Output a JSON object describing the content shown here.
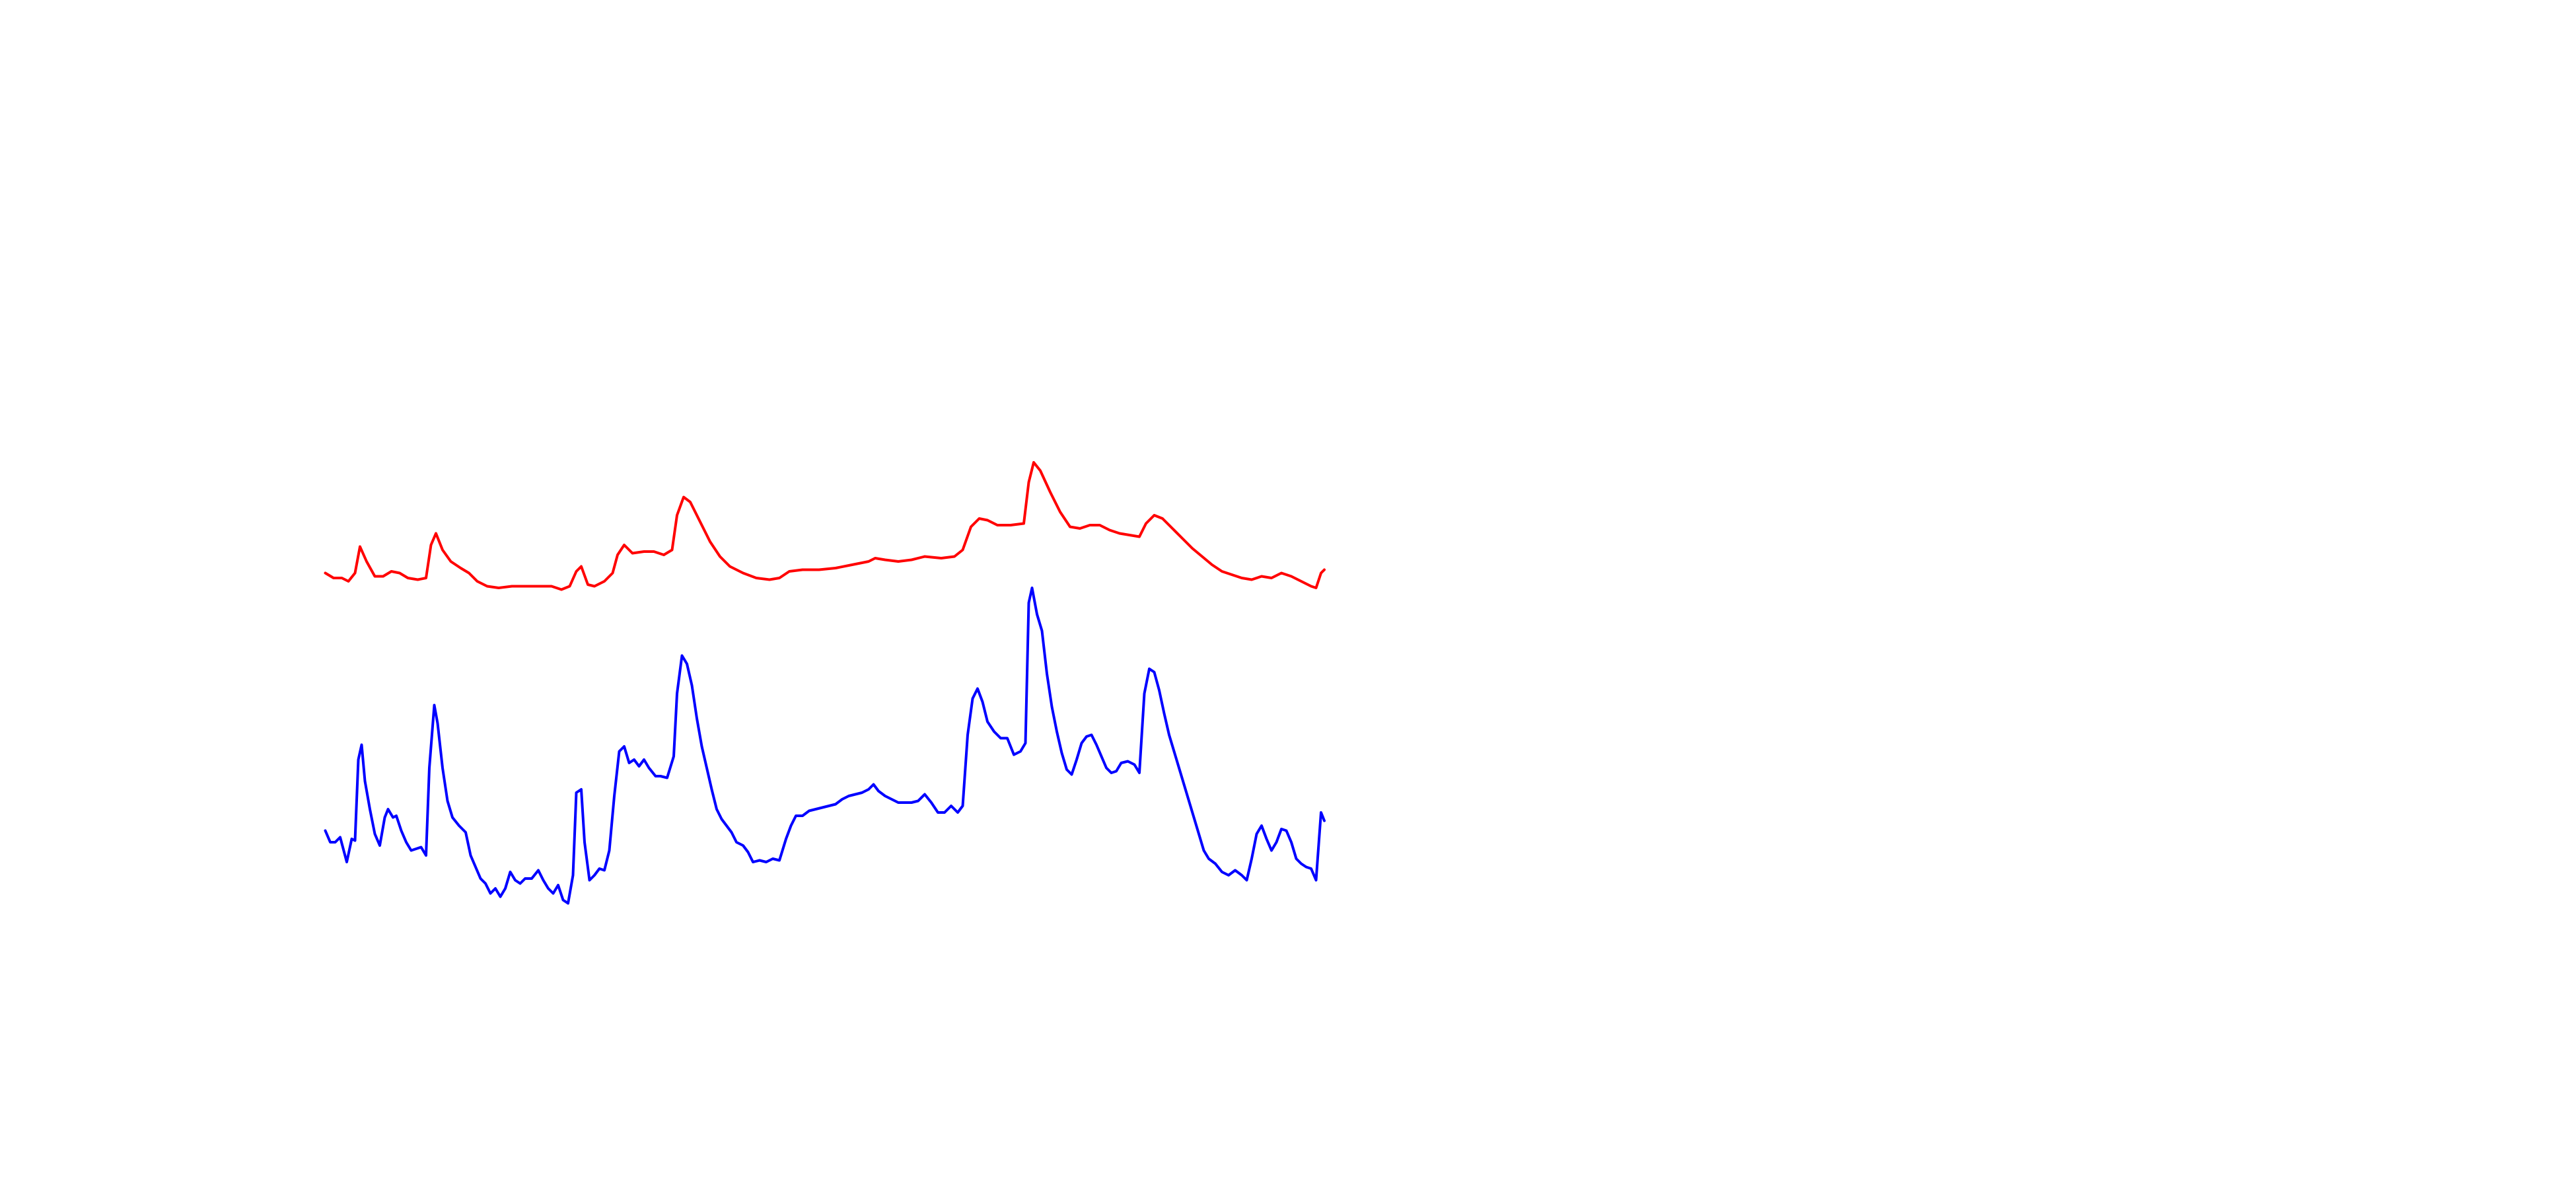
{
  "chart_data": {
    "type": "line",
    "xlim": [
      197,
      802
    ],
    "ylim": [
      720,
      0
    ],
    "series": [
      {
        "color": "#ff0000",
        "x": [
          197,
          202,
          207,
          211,
          215,
          218,
          222,
          227,
          232,
          237,
          242,
          247,
          253,
          258,
          261,
          264,
          268,
          273,
          279,
          284,
          289,
          295,
          302,
          310,
          318,
          326,
          334,
          340,
          345,
          349,
          352,
          356,
          360,
          366,
          371,
          374,
          378,
          383,
          390,
          396,
          402,
          407,
          410,
          414,
          418,
          424,
          430,
          436,
          442,
          450,
          458,
          466,
          472,
          478,
          486,
          496,
          506,
          516,
          526,
          530,
          536,
          544,
          552,
          560,
          570,
          578,
          583,
          588,
          593,
          598,
          604,
          612,
          620,
          623,
          626,
          630,
          636,
          642,
          648,
          654,
          660,
          666,
          672,
          678,
          684,
          690,
          694,
          699,
          704,
          710,
          716,
          722,
          728,
          734,
          740,
          746,
          752,
          758,
          764,
          770,
          776,
          782,
          788,
          794,
          797,
          800,
          802
        ],
        "values": [
          347,
          350,
          350,
          352,
          347,
          331,
          340,
          349,
          349,
          346,
          347,
          350,
          351,
          350,
          330,
          323,
          333,
          340,
          344,
          347,
          352,
          355,
          356,
          355,
          355,
          355,
          355,
          357,
          355,
          346,
          343,
          354,
          355,
          352,
          347,
          336,
          330,
          335,
          334,
          334,
          336,
          333,
          312,
          301,
          304,
          316,
          328,
          337,
          343,
          347,
          350,
          351,
          350,
          346,
          345,
          345,
          344,
          342,
          340,
          338,
          339,
          340,
          339,
          337,
          338,
          337,
          333,
          319,
          314,
          315,
          318,
          318,
          317,
          292,
          280,
          285,
          298,
          310,
          319,
          320,
          318,
          318,
          321,
          323,
          324,
          325,
          317,
          312,
          314,
          320,
          326,
          332,
          337,
          342,
          346,
          348,
          350,
          351,
          349,
          350,
          347,
          349,
          352,
          355,
          356,
          347,
          345
        ]
      },
      {
        "color": "#0000ff",
        "x": [
          197,
          200,
          203,
          206,
          210,
          213,
          215,
          217,
          219,
          221,
          224,
          227,
          230,
          233,
          235,
          238,
          240,
          243,
          246,
          249,
          252,
          255,
          258,
          260,
          263,
          265,
          268,
          271,
          274,
          278,
          282,
          285,
          288,
          291,
          294,
          297,
          300,
          303,
          306,
          309,
          312,
          315,
          318,
          322,
          326,
          329,
          332,
          335,
          338,
          341,
          344,
          347,
          349,
          352,
          354,
          357,
          360,
          363,
          366,
          369,
          372,
          375,
          378,
          381,
          384,
          387,
          390,
          393,
          397,
          400,
          404,
          408,
          410,
          413,
          416,
          419,
          422,
          425,
          428,
          431,
          434,
          437,
          440,
          443,
          446,
          450,
          453,
          456,
          460,
          464,
          468,
          472,
          476,
          479,
          482,
          486,
          490,
          494,
          498,
          502,
          506,
          510,
          514,
          518,
          522,
          526,
          529,
          532,
          536,
          540,
          544,
          548,
          552,
          556,
          560,
          564,
          568,
          572,
          576,
          580,
          583,
          586,
          589,
          592,
          595,
          598,
          602,
          606,
          610,
          614,
          618,
          621,
          623,
          625,
          628,
          631,
          634,
          637,
          640,
          643,
          646,
          649,
          652,
          655,
          658,
          661,
          664,
          667,
          670,
          673,
          676,
          679,
          683,
          687,
          690,
          693,
          696,
          699,
          702,
          705,
          708,
          711,
          714,
          717,
          720,
          723,
          726,
          729,
          732,
          736,
          740,
          744,
          748,
          752,
          755,
          758,
          761,
          764,
          767,
          770,
          773,
          776,
          779,
          782,
          785,
          788,
          791,
          794,
          797,
          800,
          802
        ],
        "values": [
          503,
          510,
          510,
          507,
          522,
          508,
          509,
          460,
          451,
          473,
          490,
          505,
          512,
          495,
          490,
          495,
          494,
          503,
          510,
          515,
          514,
          513,
          518,
          465,
          427,
          438,
          465,
          485,
          495,
          500,
          504,
          518,
          525,
          532,
          535,
          541,
          538,
          543,
          538,
          528,
          533,
          535,
          532,
          532,
          527,
          533,
          538,
          541,
          536,
          545,
          547,
          530,
          480,
          478,
          510,
          533,
          530,
          526,
          527,
          515,
          482,
          455,
          452,
          462,
          460,
          464,
          460,
          465,
          470,
          470,
          471,
          458,
          420,
          397,
          402,
          415,
          435,
          452,
          465,
          478,
          490,
          496,
          500,
          504,
          510,
          512,
          516,
          522,
          521,
          522,
          520,
          521,
          508,
          500,
          494,
          494,
          491,
          490,
          489,
          488,
          487,
          484,
          482,
          481,
          480,
          478,
          475,
          479,
          482,
          484,
          486,
          486,
          486,
          485,
          481,
          486,
          492,
          492,
          488,
          492,
          488,
          445,
          423,
          417,
          425,
          437,
          443,
          447,
          447,
          457,
          455,
          450,
          365,
          356,
          372,
          382,
          408,
          428,
          443,
          456,
          466,
          469,
          460,
          450,
          446,
          445,
          451,
          458,
          465,
          468,
          467,
          462,
          461,
          463,
          468,
          420,
          405,
          407,
          418,
          432,
          445,
          455,
          465,
          475,
          485,
          495,
          505,
          515,
          520,
          523,
          528,
          530,
          527,
          530,
          533,
          520,
          505,
          500,
          508,
          515,
          510,
          502,
          503,
          510,
          520,
          523,
          525,
          526,
          533,
          492,
          497
        ]
      }
    ]
  }
}
